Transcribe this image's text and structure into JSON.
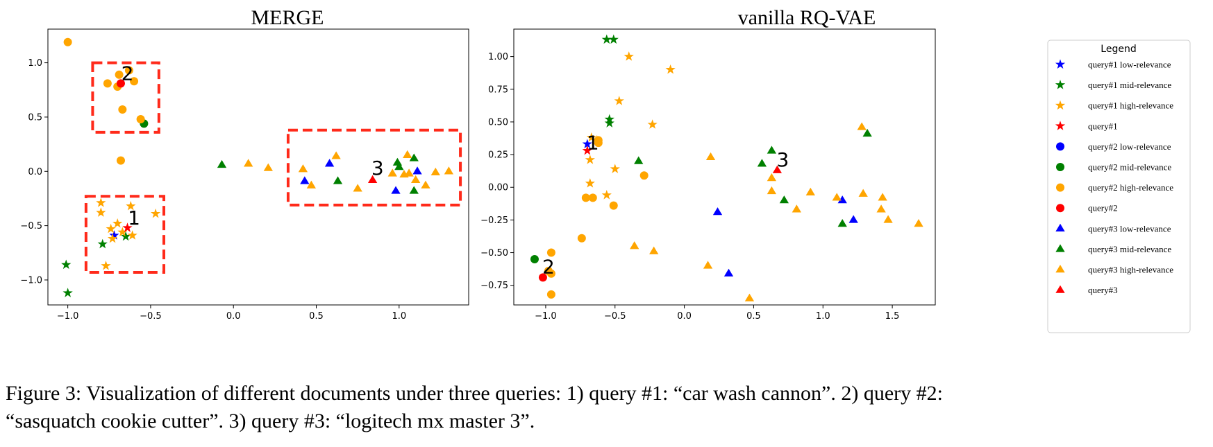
{
  "colors": {
    "low": "#0000ff",
    "mid": "#008000",
    "high": "#ffa500",
    "query": "#ff0000",
    "box": "#ff2a1a"
  },
  "caption": {
    "line1": "Figure 3: Visualization of different documents under three queries: 1) query #1: “car wash cannon”. 2) query #2:",
    "line2": "“sasquatch cookie cutter”. 3) query #3: “logitech mx master 3”."
  },
  "legend": {
    "title": "Legend",
    "items": [
      {
        "label": "query#1 low-relevance",
        "marker": "star",
        "color": "low"
      },
      {
        "label": "query#1 mid-relevance",
        "marker": "star",
        "color": "mid"
      },
      {
        "label": "query#1 high-relevance",
        "marker": "star",
        "color": "high"
      },
      {
        "label": "query#1",
        "marker": "star",
        "color": "query"
      },
      {
        "label": "query#2 low-relevance",
        "marker": "circle",
        "color": "low"
      },
      {
        "label": "query#2 mid-relevance",
        "marker": "circle",
        "color": "mid"
      },
      {
        "label": "query#2 high-relevance",
        "marker": "circle",
        "color": "high"
      },
      {
        "label": "query#2",
        "marker": "circle",
        "color": "query"
      },
      {
        "label": "query#3 low-relevance",
        "marker": "triangle",
        "color": "low"
      },
      {
        "label": "query#3 mid-relevance",
        "marker": "triangle",
        "color": "mid"
      },
      {
        "label": "query#3 high-relevance",
        "marker": "triangle",
        "color": "high"
      },
      {
        "label": "query#3",
        "marker": "triangle",
        "color": "query"
      }
    ]
  },
  "chart_data": [
    {
      "type": "scatter",
      "title": "MERGE",
      "xlim": [
        -1.12,
        1.42
      ],
      "ylim": [
        -1.23,
        1.31
      ],
      "xticks": [
        -1.0,
        -0.5,
        0.0,
        0.5,
        1.0
      ],
      "xtick_labels": [
        "−1.0",
        "−0.5",
        "0.0",
        "0.5",
        "1.0"
      ],
      "yticks": [
        -1.0,
        -0.5,
        0.0,
        0.5,
        1.0
      ],
      "ytick_labels": [
        "−1.0",
        "−0.5",
        "0.0",
        "0.5",
        "1.0"
      ],
      "grid": false,
      "boxes": [
        {
          "x0": -0.85,
          "x1": -0.45,
          "y0": 0.36,
          "y1": 1.0
        },
        {
          "x0": 0.33,
          "x1": 1.37,
          "y0": -0.31,
          "y1": 0.38
        },
        {
          "x0": -0.89,
          "x1": -0.42,
          "y0": -0.93,
          "y1": -0.23
        }
      ],
      "annotations": [
        {
          "text": "2",
          "x": -0.64,
          "y": 0.84
        },
        {
          "text": "1",
          "x": -0.6,
          "y": -0.49
        },
        {
          "text": "3",
          "x": 0.87,
          "y": -0.03
        }
      ],
      "series": [
        {
          "name": "query#1 low-relevance",
          "marker": "star",
          "color": "low",
          "points": [
            [
              -0.72,
              -0.59
            ]
          ]
        },
        {
          "name": "query#1 mid-relevance",
          "marker": "star",
          "color": "mid",
          "points": [
            [
              -0.79,
              -0.67
            ],
            [
              -1.01,
              -0.86
            ],
            [
              -1.0,
              -1.12
            ],
            [
              -0.65,
              -0.6
            ]
          ]
        },
        {
          "name": "query#1 high-relevance",
          "marker": "star",
          "color": "high",
          "points": [
            [
              -0.8,
              -0.29
            ],
            [
              -0.8,
              -0.38
            ],
            [
              -0.62,
              -0.32
            ],
            [
              -0.47,
              -0.39
            ],
            [
              -0.74,
              -0.53
            ],
            [
              -0.7,
              -0.48
            ],
            [
              -0.67,
              -0.56
            ],
            [
              -0.61,
              -0.59
            ],
            [
              -0.73,
              -0.62
            ],
            [
              -0.77,
              -0.87
            ]
          ]
        },
        {
          "name": "query#1",
          "marker": "star",
          "color": "query",
          "points": [
            [
              -0.64,
              -0.52
            ]
          ]
        },
        {
          "name": "query#2 mid-relevance",
          "marker": "circle",
          "color": "mid",
          "points": [
            [
              -0.54,
              0.44
            ]
          ]
        },
        {
          "name": "query#2 high-relevance",
          "marker": "circle",
          "color": "high",
          "points": [
            [
              -1.0,
              1.19
            ],
            [
              -0.76,
              0.81
            ],
            [
              -0.69,
              0.89
            ],
            [
              -0.63,
              0.93
            ],
            [
              -0.6,
              0.83
            ],
            [
              -0.7,
              0.78
            ],
            [
              -0.67,
              0.57
            ],
            [
              -0.56,
              0.48
            ],
            [
              -0.68,
              0.1
            ]
          ]
        },
        {
          "name": "query#2",
          "marker": "circle",
          "color": "query",
          "points": [
            [
              -0.68,
              0.81
            ]
          ]
        },
        {
          "name": "query#3 low-relevance",
          "marker": "triangle",
          "color": "low",
          "points": [
            [
              0.43,
              -0.09
            ],
            [
              0.58,
              0.07
            ],
            [
              0.98,
              -0.18
            ],
            [
              1.11,
              0.0
            ]
          ]
        },
        {
          "name": "query#3 mid-relevance",
          "marker": "triangle",
          "color": "mid",
          "points": [
            [
              -0.07,
              0.06
            ],
            [
              0.63,
              -0.09
            ],
            [
              0.99,
              0.08
            ],
            [
              1.0,
              0.04
            ],
            [
              1.09,
              0.12
            ],
            [
              1.09,
              -0.18
            ]
          ]
        },
        {
          "name": "query#3 high-relevance",
          "marker": "triangle",
          "color": "high",
          "points": [
            [
              0.09,
              0.07
            ],
            [
              0.21,
              0.03
            ],
            [
              0.42,
              0.02
            ],
            [
              0.47,
              -0.13
            ],
            [
              0.62,
              0.14
            ],
            [
              0.75,
              -0.16
            ],
            [
              0.96,
              -0.02
            ],
            [
              1.03,
              -0.03
            ],
            [
              1.05,
              0.15
            ],
            [
              1.06,
              -0.02
            ],
            [
              1.1,
              -0.08
            ],
            [
              1.16,
              -0.13
            ],
            [
              1.22,
              -0.01
            ],
            [
              1.3,
              0.0
            ]
          ]
        },
        {
          "name": "query#3",
          "marker": "triangle",
          "color": "query",
          "points": [
            [
              0.84,
              -0.08
            ]
          ]
        }
      ]
    },
    {
      "type": "scatter",
      "title": "vanilla RQ-VAE",
      "xlim": [
        -1.23,
        1.81
      ],
      "ylim": [
        -0.9,
        1.21
      ],
      "xticks": [
        -1.0,
        -0.5,
        0.0,
        0.5,
        1.0,
        1.5
      ],
      "xtick_labels": [
        "−1.0",
        "−0.5",
        "0.0",
        "0.5",
        "1.0",
        "1.5"
      ],
      "yticks": [
        -0.75,
        -0.5,
        -0.25,
        0.0,
        0.25,
        0.5,
        0.75,
        1.0
      ],
      "ytick_labels": [
        "−0.75",
        "−0.50",
        "−0.25",
        "0.00",
        "0.25",
        "0.50",
        "0.75",
        "1.00"
      ],
      "grid": false,
      "boxes": [],
      "annotations": [
        {
          "text": "1",
          "x": -0.66,
          "y": 0.29
        },
        {
          "text": "2",
          "x": -0.98,
          "y": -0.66
        },
        {
          "text": "3",
          "x": 0.71,
          "y": 0.16
        }
      ],
      "series": [
        {
          "name": "query#1 low-relevance",
          "marker": "star",
          "color": "low",
          "points": [
            [
              -0.7,
              0.33
            ]
          ]
        },
        {
          "name": "query#1 mid-relevance",
          "marker": "star",
          "color": "mid",
          "points": [
            [
              -0.56,
              1.13
            ],
            [
              -0.51,
              1.13
            ],
            [
              -0.54,
              0.52
            ],
            [
              -0.54,
              0.49
            ]
          ]
        },
        {
          "name": "query#1 high-relevance",
          "marker": "star",
          "color": "high",
          "points": [
            [
              -0.4,
              1.0
            ],
            [
              -0.1,
              0.9
            ],
            [
              -0.47,
              0.66
            ],
            [
              -0.23,
              0.48
            ],
            [
              -0.67,
              0.38
            ],
            [
              -0.63,
              0.36
            ],
            [
              -0.68,
              0.21
            ],
            [
              -0.5,
              0.14
            ],
            [
              -0.68,
              0.03
            ],
            [
              -0.56,
              -0.06
            ]
          ]
        },
        {
          "name": "query#1",
          "marker": "star",
          "color": "query",
          "points": [
            [
              -0.7,
              0.28
            ]
          ]
        },
        {
          "name": "query#2 mid-relevance",
          "marker": "circle",
          "color": "mid",
          "points": [
            [
              -1.08,
              -0.55
            ]
          ]
        },
        {
          "name": "query#2 high-relevance",
          "marker": "circle",
          "color": "high",
          "points": [
            [
              -0.62,
              0.34
            ],
            [
              -0.62,
              0.36
            ],
            [
              -0.71,
              -0.08
            ],
            [
              -0.66,
              -0.08
            ],
            [
              -0.51,
              -0.14
            ],
            [
              -0.29,
              0.09
            ],
            [
              -0.74,
              -0.39
            ],
            [
              -0.96,
              -0.5
            ],
            [
              -0.98,
              -0.64
            ],
            [
              -0.96,
              -0.66
            ],
            [
              -0.96,
              -0.82
            ]
          ]
        },
        {
          "name": "query#2",
          "marker": "circle",
          "color": "query",
          "points": [
            [
              -1.02,
              -0.69
            ]
          ]
        },
        {
          "name": "query#3 low-relevance",
          "marker": "triangle",
          "color": "low",
          "points": [
            [
              0.24,
              -0.19
            ],
            [
              0.32,
              -0.66
            ],
            [
              1.14,
              -0.1
            ],
            [
              1.22,
              -0.25
            ]
          ]
        },
        {
          "name": "query#3 mid-relevance",
          "marker": "triangle",
          "color": "mid",
          "points": [
            [
              -0.33,
              0.2
            ],
            [
              0.56,
              0.18
            ],
            [
              0.63,
              0.28
            ],
            [
              0.72,
              -0.1
            ],
            [
              1.14,
              -0.28
            ],
            [
              1.32,
              0.41
            ]
          ]
        },
        {
          "name": "query#3 high-relevance",
          "marker": "triangle",
          "color": "high",
          "points": [
            [
              0.19,
              0.23
            ],
            [
              -0.36,
              -0.45
            ],
            [
              -0.22,
              -0.49
            ],
            [
              0.17,
              -0.6
            ],
            [
              0.47,
              -0.85
            ],
            [
              0.63,
              0.07
            ],
            [
              0.63,
              -0.03
            ],
            [
              0.81,
              -0.17
            ],
            [
              0.91,
              -0.04
            ],
            [
              1.1,
              -0.08
            ],
            [
              1.28,
              0.46
            ],
            [
              1.29,
              -0.05
            ],
            [
              1.42,
              -0.17
            ],
            [
              1.43,
              -0.08
            ],
            [
              1.47,
              -0.25
            ],
            [
              1.69,
              -0.28
            ]
          ]
        },
        {
          "name": "query#3",
          "marker": "triangle",
          "color": "query",
          "points": [
            [
              0.67,
              0.13
            ]
          ]
        }
      ]
    }
  ]
}
